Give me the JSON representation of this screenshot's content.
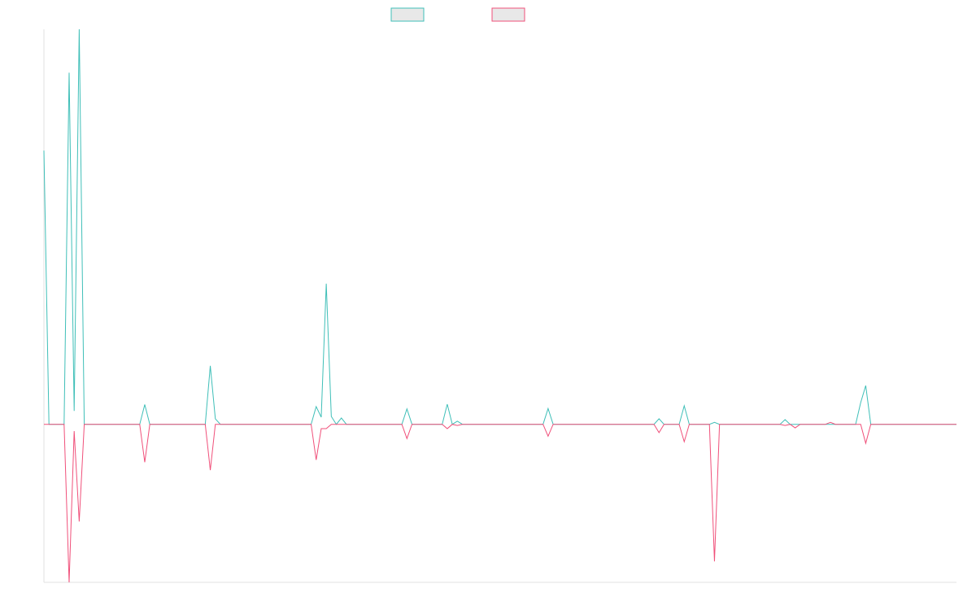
{
  "chart_data": {
    "type": "line",
    "ylim": [
      -40,
      100
    ],
    "series": [
      {
        "color": "#3fbfb8",
        "values": [
          69.3,
          0,
          0,
          0,
          0,
          89,
          3.4,
          100,
          0,
          0,
          0,
          0,
          0,
          0,
          0,
          0,
          0,
          0,
          0,
          0,
          5,
          0,
          0,
          0,
          0,
          0,
          0,
          0,
          0,
          0,
          0,
          0,
          0,
          14.8,
          1.4,
          0,
          0,
          0,
          0,
          0,
          0,
          0,
          0,
          0,
          0,
          0,
          0,
          0,
          0,
          0,
          0,
          0,
          0,
          0,
          4.5,
          1.8,
          35.6,
          2,
          0,
          1.6,
          0,
          0,
          0,
          0,
          0,
          0,
          0,
          0,
          0,
          0,
          0,
          0,
          3.9,
          0,
          0,
          0,
          0,
          0,
          0,
          0,
          5.1,
          0,
          0.8,
          0,
          0,
          0,
          0,
          0,
          0,
          0,
          0,
          0,
          0,
          0,
          0,
          0,
          0,
          0,
          0,
          0,
          4,
          0,
          0,
          0,
          0,
          0,
          0,
          0,
          0,
          0,
          0,
          0,
          0,
          0,
          0,
          0,
          0,
          0,
          0,
          0,
          0,
          0,
          1.4,
          0,
          0,
          0,
          0,
          4.7,
          0,
          0,
          0,
          0,
          0,
          0.5,
          0,
          0,
          0,
          0,
          0,
          0,
          0,
          0,
          0,
          0,
          0,
          0,
          0,
          1.2,
          0,
          0,
          0,
          0,
          0,
          0,
          0,
          0,
          0,
          0,
          0,
          0,
          0,
          0,
          5.5,
          9.8,
          0,
          0,
          0,
          0,
          0,
          0,
          0,
          0,
          0,
          0,
          0,
          0,
          0,
          0,
          0,
          0,
          0,
          0
        ]
      },
      {
        "color": "#f0507a",
        "values": [
          0,
          0,
          0,
          0,
          0,
          -40,
          -1.7,
          -24.6,
          0,
          0,
          0,
          0,
          0,
          0,
          0,
          0,
          0,
          0,
          0,
          0,
          -9.6,
          0,
          0,
          0,
          0,
          0,
          0,
          0,
          0,
          0,
          0,
          0,
          0,
          -11.6,
          0,
          0,
          0,
          0,
          0,
          0,
          0,
          0,
          0,
          0,
          0,
          0,
          0,
          0,
          0,
          0,
          0,
          0,
          0,
          0,
          -9,
          -1.1,
          -1.1,
          0,
          0,
          0,
          0,
          0,
          0,
          0,
          0,
          0,
          0,
          0,
          0,
          0,
          0,
          0,
          -3.6,
          0,
          0,
          0,
          0,
          0,
          0,
          0,
          -1.1,
          0,
          -0.3,
          0,
          0,
          0,
          0,
          0,
          0,
          0,
          0,
          0,
          0,
          0,
          0,
          0,
          0,
          0,
          0,
          0,
          -3,
          0,
          0,
          0,
          0,
          0,
          0,
          0,
          0,
          0,
          0,
          0,
          0,
          0,
          0,
          0,
          0,
          0,
          0,
          0,
          0,
          0,
          -2.1,
          0,
          0,
          0,
          0,
          -4.4,
          0,
          0,
          0,
          0,
          0,
          -34.7,
          0,
          0,
          0,
          0,
          0,
          0,
          0,
          0,
          0,
          0,
          0,
          0,
          0,
          -0.3,
          0,
          -0.9,
          0,
          0,
          0,
          0,
          0,
          0,
          0.5,
          0,
          0,
          0,
          0,
          0,
          0,
          -4.8,
          0,
          0,
          0,
          0,
          0,
          0,
          0,
          0,
          0,
          0,
          0,
          0,
          0,
          0,
          0,
          0,
          0,
          0
        ]
      }
    ]
  }
}
